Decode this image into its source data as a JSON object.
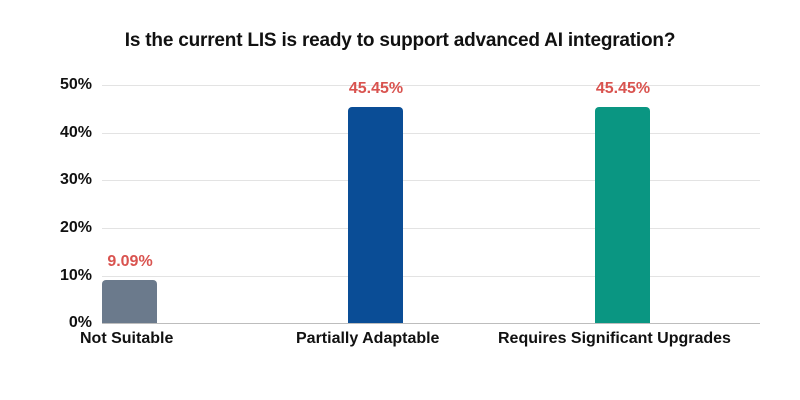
{
  "chart_data": {
    "type": "bar",
    "title": "Is the current LIS is ready to support advanced AI integration?",
    "categories": [
      "Not Suitable",
      "Partially Adaptable",
      "Requires Significant Upgrades"
    ],
    "values": [
      9.09,
      45.45,
      45.45
    ],
    "value_labels": [
      "9.09%",
      "45.45%",
      "45.45%"
    ],
    "colors": [
      "#6b7a8c",
      "#0a4d96",
      "#0a9682"
    ],
    "label_color": "#d9534f",
    "xlabel": "",
    "ylabel": "",
    "ylim": [
      0,
      50
    ],
    "yticks": [
      "0%",
      "10%",
      "20%",
      "30%",
      "40%",
      "50%"
    ],
    "grid": true,
    "legend": "none"
  }
}
